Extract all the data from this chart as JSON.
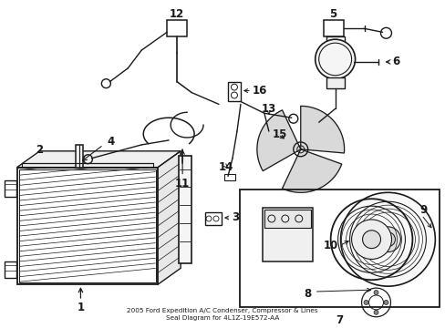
{
  "bg_color": "#ffffff",
  "line_color": "#1a1a1a",
  "fig_width": 4.89,
  "fig_height": 3.6,
  "dpi": 100,
  "label_fontsize": 8.5,
  "title": "2005 Ford Expedition A/C Condenser, Compressor & Lines\nSeal Diagram for 4L1Z-19E572-AA",
  "title_fontsize": 5.2
}
